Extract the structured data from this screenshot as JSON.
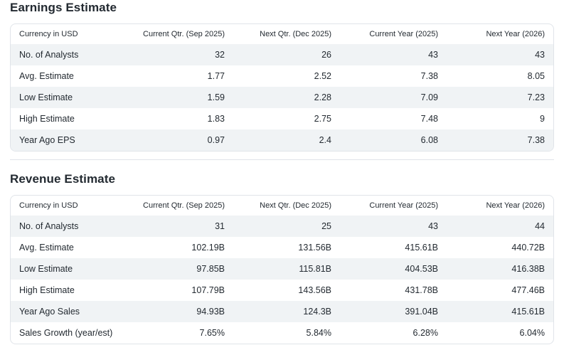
{
  "page": {
    "background": "#ffffff",
    "text_color": "#232a31",
    "stripe_color": "#f0f3f5",
    "border_color": "#e0e4e9"
  },
  "sections": [
    {
      "title": "Earnings Estimate",
      "headers": [
        "Currency in USD",
        "Current Qtr. (Sep 2025)",
        "Next Qtr. (Dec 2025)",
        "Current Year (2025)",
        "Next Year (2026)"
      ],
      "rows": [
        {
          "label": "No. of Analysts",
          "values": [
            "32",
            "26",
            "43",
            "43"
          ]
        },
        {
          "label": "Avg. Estimate",
          "values": [
            "1.77",
            "2.52",
            "7.38",
            "8.05"
          ]
        },
        {
          "label": "Low Estimate",
          "values": [
            "1.59",
            "2.28",
            "7.09",
            "7.23"
          ]
        },
        {
          "label": "High Estimate",
          "values": [
            "1.83",
            "2.75",
            "7.48",
            "9"
          ]
        },
        {
          "label": "Year Ago EPS",
          "values": [
            "0.97",
            "2.4",
            "6.08",
            "7.38"
          ]
        }
      ]
    },
    {
      "title": "Revenue Estimate",
      "headers": [
        "Currency in USD",
        "Current Qtr. (Sep 2025)",
        "Next Qtr. (Dec 2025)",
        "Current Year (2025)",
        "Next Year (2026)"
      ],
      "rows": [
        {
          "label": "No. of Analysts",
          "values": [
            "31",
            "25",
            "43",
            "44"
          ]
        },
        {
          "label": "Avg. Estimate",
          "values": [
            "102.19B",
            "131.56B",
            "415.61B",
            "440.72B"
          ]
        },
        {
          "label": "Low Estimate",
          "values": [
            "97.85B",
            "115.81B",
            "404.53B",
            "416.38B"
          ]
        },
        {
          "label": "High Estimate",
          "values": [
            "107.79B",
            "143.56B",
            "431.78B",
            "477.46B"
          ]
        },
        {
          "label": "Year Ago Sales",
          "values": [
            "94.93B",
            "124.3B",
            "391.04B",
            "415.61B"
          ]
        },
        {
          "label": "Sales Growth (year/est)",
          "values": [
            "7.65%",
            "5.84%",
            "6.28%",
            "6.04%"
          ]
        }
      ]
    }
  ],
  "chart_data": [
    {
      "type": "table",
      "title": "Earnings Estimate",
      "columns": [
        "Currency in USD",
        "Current Qtr. (Sep 2025)",
        "Next Qtr. (Dec 2025)",
        "Current Year (2025)",
        "Next Year (2026)"
      ],
      "rows": [
        [
          "No. of Analysts",
          32,
          26,
          43,
          43
        ],
        [
          "Avg. Estimate",
          1.77,
          2.52,
          7.38,
          8.05
        ],
        [
          "Low Estimate",
          1.59,
          2.28,
          7.09,
          7.23
        ],
        [
          "High Estimate",
          1.83,
          2.75,
          7.48,
          9
        ],
        [
          "Year Ago EPS",
          0.97,
          2.4,
          6.08,
          7.38
        ]
      ]
    },
    {
      "type": "table",
      "title": "Revenue Estimate",
      "columns": [
        "Currency in USD",
        "Current Qtr. (Sep 2025)",
        "Next Qtr. (Dec 2025)",
        "Current Year (2025)",
        "Next Year (2026)"
      ],
      "rows": [
        [
          "No. of Analysts",
          31,
          25,
          43,
          44
        ],
        [
          "Avg. Estimate",
          "102.19B",
          "131.56B",
          "415.61B",
          "440.72B"
        ],
        [
          "Low Estimate",
          "97.85B",
          "115.81B",
          "404.53B",
          "416.38B"
        ],
        [
          "High Estimate",
          "107.79B",
          "143.56B",
          "431.78B",
          "477.46B"
        ],
        [
          "Year Ago Sales",
          "94.93B",
          "124.3B",
          "391.04B",
          "415.61B"
        ],
        [
          "Sales Growth (year/est)",
          "7.65%",
          "5.84%",
          "6.28%",
          "6.04%"
        ]
      ]
    }
  ]
}
